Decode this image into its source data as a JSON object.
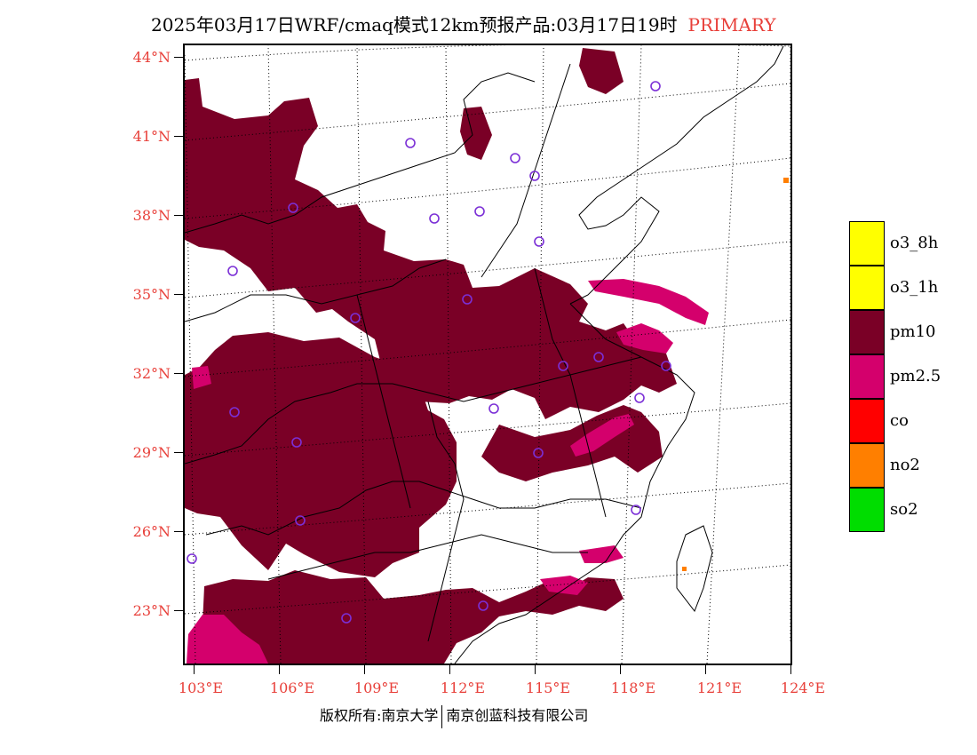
{
  "title": {
    "main": "2025年03月17日WRF/cmaq模式12km预报产品:03月17日19时",
    "tag": "PRIMARY"
  },
  "latitude_labels": [
    "44°N",
    "41°N",
    "38°N",
    "35°N",
    "32°N",
    "29°N",
    "26°N",
    "23°N"
  ],
  "longitude_labels": [
    "103°E",
    "106°E",
    "109°E",
    "112°E",
    "115°E",
    "118°E",
    "121°E",
    "124°E"
  ],
  "legend": {
    "items": [
      {
        "label": "o3_8h",
        "color": "#ffff00"
      },
      {
        "label": "o3_1h",
        "color": "#ffff00"
      },
      {
        "label": "pm10",
        "color": "#7a0026"
      },
      {
        "label": "pm2.5",
        "color": "#d4006c"
      },
      {
        "label": "co",
        "color": "#ff0000"
      },
      {
        "label": "no2",
        "color": "#ff7f00"
      },
      {
        "label": "so2",
        "color": "#00dd00"
      }
    ]
  },
  "footer": {
    "left": "版权所有:南京大学",
    "right": "南京创蓝科技有限公司"
  },
  "colors": {
    "pm10": "#7a0026",
    "pm25": "#d4006c",
    "no2": "#ff7f00",
    "station_marker": "#7b2fd6",
    "label_red": "#e8403a"
  }
}
